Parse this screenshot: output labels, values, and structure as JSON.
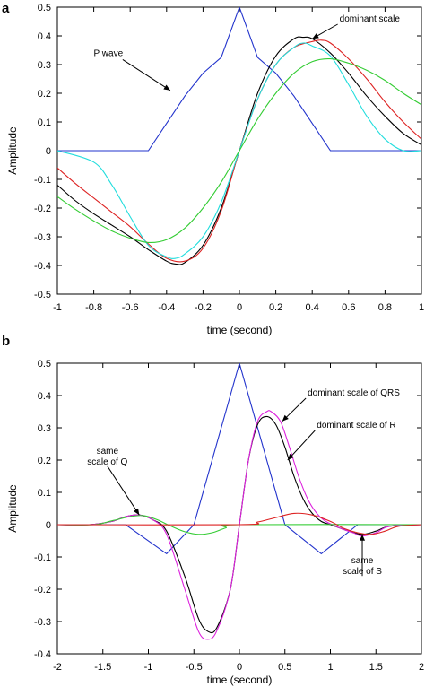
{
  "chart_data": [
    {
      "panel": "a",
      "type": "line",
      "xlabel": "time (second)",
      "ylabel": "Amplitude",
      "xlim": [
        -1,
        1
      ],
      "ylim": [
        -0.5,
        0.5
      ],
      "xticks": [
        "-1",
        "-0.8",
        "-0.6",
        "-0.4",
        "-0.2",
        "0",
        "0.2",
        "0.4",
        "0.6",
        "0.8",
        "1"
      ],
      "yticks": [
        "0.5",
        "0.4",
        "0.3",
        "0.2",
        "0.1",
        "0",
        "-0.1",
        "-0.2",
        "-0.3",
        "-0.4",
        "-0.5"
      ],
      "grid": false,
      "annotations": [
        {
          "text": "P wave",
          "x": -0.72,
          "y": 0.33,
          "target_x": -0.38,
          "target_y": 0.21
        },
        {
          "text": "dominant scale",
          "x": 0.55,
          "y": 0.45,
          "target_x": 0.4,
          "target_y": 0.39
        }
      ],
      "series": [
        {
          "color": "#2233cc",
          "x": [
            -1,
            -0.5,
            -0.4,
            -0.3,
            -0.2,
            -0.1,
            0,
            0.1,
            0.2,
            0.3,
            0.4,
            0.5,
            1
          ],
          "y": [
            0,
            0,
            0.095,
            0.19,
            0.27,
            0.325,
            0.5,
            0.325,
            0.27,
            0.19,
            0.095,
            0,
            0
          ]
        },
        {
          "color": "#000000",
          "x": [
            -1,
            -0.9,
            -0.8,
            -0.7,
            -0.6,
            -0.5,
            -0.4,
            -0.35,
            -0.3,
            -0.2,
            -0.1,
            0,
            0.1,
            0.2,
            0.3,
            0.35,
            0.4,
            0.5,
            0.6,
            0.7,
            0.8,
            0.9,
            1
          ],
          "y": [
            -0.12,
            -0.175,
            -0.22,
            -0.26,
            -0.3,
            -0.345,
            -0.385,
            -0.395,
            -0.39,
            -0.33,
            -0.2,
            0,
            0.2,
            0.33,
            0.39,
            0.395,
            0.39,
            0.34,
            0.27,
            0.19,
            0.12,
            0.06,
            0.02
          ]
        },
        {
          "color": "#dd2222",
          "x": [
            -1,
            -0.9,
            -0.8,
            -0.7,
            -0.6,
            -0.5,
            -0.4,
            -0.3,
            -0.2,
            -0.1,
            0,
            0.1,
            0.2,
            0.3,
            0.4,
            0.45,
            0.5,
            0.6,
            0.7,
            0.8,
            0.9,
            1
          ],
          "y": [
            -0.06,
            -0.115,
            -0.165,
            -0.215,
            -0.265,
            -0.325,
            -0.375,
            -0.385,
            -0.34,
            -0.21,
            0,
            0.18,
            0.3,
            0.36,
            0.38,
            0.385,
            0.375,
            0.32,
            0.25,
            0.17,
            0.1,
            0.04
          ]
        },
        {
          "color": "#22dddd",
          "x": [
            -1,
            -0.8,
            -0.7,
            -0.6,
            -0.5,
            -0.4,
            -0.35,
            -0.3,
            -0.2,
            -0.1,
            0,
            0.1,
            0.2,
            0.3,
            0.35,
            0.4,
            0.5,
            0.6,
            0.7,
            0.8,
            0.9,
            1
          ],
          "y": [
            0,
            -0.04,
            -0.12,
            -0.23,
            -0.33,
            -0.37,
            -0.375,
            -0.36,
            -0.3,
            -0.18,
            0,
            0.18,
            0.3,
            0.36,
            0.375,
            0.365,
            0.33,
            0.23,
            0.12,
            0.04,
            0,
            0
          ]
        },
        {
          "color": "#33cc33",
          "x": [
            -1,
            -0.9,
            -0.8,
            -0.7,
            -0.6,
            -0.5,
            -0.4,
            -0.3,
            -0.2,
            -0.1,
            0,
            0.1,
            0.2,
            0.3,
            0.4,
            0.5,
            0.6,
            0.7,
            0.8,
            0.9,
            1
          ],
          "y": [
            -0.16,
            -0.205,
            -0.245,
            -0.28,
            -0.305,
            -0.32,
            -0.31,
            -0.27,
            -0.2,
            -0.11,
            0,
            0.11,
            0.2,
            0.27,
            0.31,
            0.32,
            0.305,
            0.28,
            0.245,
            0.2,
            0.16
          ]
        }
      ]
    },
    {
      "panel": "b",
      "type": "line",
      "xlabel": "time (second)",
      "ylabel": "Amplitude",
      "xlim": [
        -2,
        2
      ],
      "ylim": [
        -0.4,
        0.5
      ],
      "xticks": [
        "-2",
        "-1.5",
        "-1",
        "-0.5",
        "0",
        "0.5",
        "1",
        "1.5",
        "2"
      ],
      "yticks": [
        "0.5",
        "0.4",
        "0.3",
        "0.2",
        "0.1",
        "0",
        "-0.1",
        "-0.2",
        "-0.3",
        "-0.4"
      ],
      "grid": false,
      "annotations": [
        {
          "text": "dominant scale of QRS",
          "x": 0.75,
          "y": 0.4,
          "target_x": 0.47,
          "target_y": 0.32
        },
        {
          "text": "dominant scale of R",
          "x": 0.85,
          "y": 0.3,
          "target_x": 0.53,
          "target_y": 0.2
        },
        {
          "text": "same scale of Q",
          "x": -1.45,
          "y": 0.22,
          "target_x": -1.1,
          "target_y": 0.03
        },
        {
          "text": "same scale of S",
          "x": 1.35,
          "y": -0.12,
          "target_x": 1.35,
          "target_y": -0.03
        }
      ],
      "series": [
        {
          "color": "#2233cc",
          "x": [
            -2,
            -1.25,
            -0.8,
            -0.5,
            0,
            0.5,
            0.9,
            1.3,
            2
          ],
          "y": [
            0,
            0,
            -0.09,
            0,
            0.5,
            0,
            -0.09,
            0,
            0
          ]
        },
        {
          "color": "#000000",
          "x": [
            -2,
            -1.65,
            -1.4,
            -1.25,
            -1.1,
            -0.95,
            -0.8,
            -0.6,
            -0.45,
            -0.35,
            -0.25,
            -0.1,
            0,
            0.1,
            0.2,
            0.3,
            0.4,
            0.5,
            0.6,
            0.7,
            0.8,
            0.9,
            1.0,
            1.1,
            1.2,
            1.35,
            1.5,
            1.65,
            2
          ],
          "y": [
            0,
            0,
            0.01,
            0.025,
            0.03,
            0.015,
            -0.02,
            -0.16,
            -0.29,
            -0.33,
            -0.32,
            -0.2,
            0,
            0.2,
            0.31,
            0.335,
            0.31,
            0.24,
            0.15,
            0.08,
            0.035,
            0.01,
            0,
            -0.01,
            -0.02,
            -0.03,
            -0.02,
            -0.005,
            0
          ]
        },
        {
          "color": "#dd22dd",
          "x": [
            -2,
            -1.65,
            -1.4,
            -1.25,
            -1.1,
            -0.95,
            -0.8,
            -0.6,
            -0.45,
            -0.35,
            -0.25,
            -0.1,
            0,
            0.1,
            0.2,
            0.3,
            0.35,
            0.45,
            0.55,
            0.65,
            0.75,
            0.85,
            0.95,
            1.1,
            1.25,
            1.35,
            1.5,
            1.65,
            2
          ],
          "y": [
            0,
            0,
            0.01,
            0.025,
            0.03,
            0.015,
            -0.03,
            -0.2,
            -0.33,
            -0.355,
            -0.33,
            -0.2,
            0,
            0.2,
            0.32,
            0.35,
            0.35,
            0.32,
            0.24,
            0.15,
            0.08,
            0.035,
            0.01,
            -0.01,
            -0.025,
            -0.035,
            -0.025,
            -0.005,
            0
          ]
        },
        {
          "color": "#33cc33",
          "x": [
            -2,
            -1.6,
            -1.4,
            -1.2,
            -1.05,
            -0.9,
            -0.75,
            -0.6,
            -0.45,
            -0.3,
            -0.15,
            0,
            2
          ],
          "y": [
            0,
            0,
            0.012,
            0.025,
            0.028,
            0.015,
            -0.005,
            -0.022,
            -0.03,
            -0.025,
            -0.01,
            0,
            0
          ]
        },
        {
          "color": "#dd2222",
          "x": [
            -2,
            0,
            0.2,
            0.4,
            0.6,
            0.8,
            1.0,
            1.15,
            1.3,
            1.45,
            1.6,
            1.75,
            2
          ],
          "y": [
            0,
            0,
            0.008,
            0.022,
            0.035,
            0.03,
            0.01,
            -0.012,
            -0.025,
            -0.03,
            -0.02,
            -0.005,
            0
          ]
        }
      ]
    }
  ]
}
